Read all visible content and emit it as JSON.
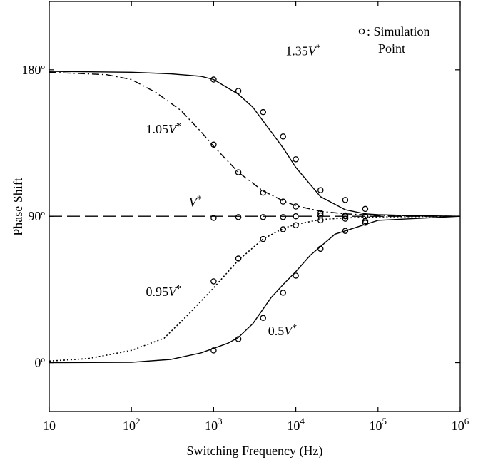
{
  "chart_data": {
    "type": "line",
    "title": "",
    "xlabel": "Switching Frequency (Hz)",
    "ylabel": "Phase Shift",
    "x_scale": "log",
    "xlim": [
      10,
      1000000
    ],
    "ylim": [
      -30,
      222
    ],
    "x_ticks": [
      {
        "value": 10,
        "base": "10",
        "exp": ""
      },
      {
        "value": 100,
        "base": "10",
        "exp": "2"
      },
      {
        "value": 1000,
        "base": "10",
        "exp": "3"
      },
      {
        "value": 10000,
        "base": "10",
        "exp": "4"
      },
      {
        "value": 100000,
        "base": "10",
        "exp": "5"
      },
      {
        "value": 1000000,
        "base": "10",
        "exp": "6"
      }
    ],
    "y_ticks": [
      {
        "value": 0,
        "label": "0º"
      },
      {
        "value": 90,
        "label": "90º"
      },
      {
        "value": 180,
        "label": "180º"
      }
    ],
    "legend": {
      "marker": "o",
      "text_line1": ": Simulation",
      "text_line2": "Point",
      "position": "top-right"
    },
    "series": [
      {
        "name": "1.35V*",
        "label_main": "1.35",
        "label_var": "V",
        "label_sup": "*",
        "label_x": 7500,
        "label_y": 189,
        "style": "solid",
        "curve": {
          "x": [
            10,
            100,
            300,
            700,
            1000,
            2000,
            3000,
            5000,
            7000,
            10000,
            20000,
            40000,
            70000,
            100000,
            300000,
            1000000
          ],
          "y": [
            179,
            178.5,
            177.5,
            176,
            174,
            165,
            157,
            142,
            132,
            120,
            102,
            94,
            91.5,
            91,
            90.3,
            90
          ]
        },
        "points": {
          "x": [
            1000,
            2000,
            4000,
            7000,
            10000,
            20000,
            40000,
            70000
          ],
          "y": [
            174,
            167,
            154,
            139,
            125,
            106,
            100,
            94.5
          ]
        }
      },
      {
        "name": "1.05V*",
        "label_main": "1.05",
        "label_var": "V",
        "label_sup": "*",
        "label_x": 150,
        "label_y": 141,
        "style": "dashdot",
        "curve": {
          "x": [
            10,
            50,
            100,
            200,
            400,
            700,
            1000,
            2000,
            4000,
            7000,
            10000,
            20000,
            40000,
            100000,
            1000000
          ],
          "y": [
            178.5,
            177,
            174,
            166,
            155,
            142,
            133,
            117,
            105.5,
            99.5,
            96.5,
            93,
            91.5,
            90.5,
            90
          ]
        },
        "points": {
          "x": [
            1000,
            2000,
            4000,
            7000,
            10000,
            20000,
            40000,
            70000
          ],
          "y": [
            134,
            117,
            104.5,
            99,
            96,
            92,
            90.5,
            90
          ]
        }
      },
      {
        "name": "V*",
        "label_main": "",
        "label_var": "V",
        "label_sup": "*",
        "label_x": 500,
        "label_y": 96,
        "style": "dashed",
        "curve": {
          "x": [
            10,
            1000000
          ],
          "y": [
            90,
            90
          ]
        },
        "points": {
          "x": [
            1000,
            2000,
            4000,
            7000,
            10000,
            20000,
            40000,
            70000
          ],
          "y": [
            89,
            89.5,
            89.5,
            89.5,
            90,
            90.5,
            90,
            90
          ]
        }
      },
      {
        "name": "0.95V*",
        "label_main": "0.95",
        "label_var": "V",
        "label_sup": "*",
        "label_x": 150,
        "label_y": 41,
        "style": "dotted",
        "curve": {
          "x": [
            10,
            30,
            100,
            250,
            500,
            1000,
            2000,
            4000,
            7000,
            10000,
            20000,
            40000,
            100000,
            1000000
          ],
          "y": [
            1,
            2.5,
            7.5,
            15,
            30,
            46,
            63,
            76,
            82.5,
            85,
            88,
            89,
            89.6,
            90
          ]
        },
        "points": {
          "x": [
            1000,
            2000,
            4000,
            7000,
            10000,
            20000,
            40000,
            70000
          ],
          "y": [
            50,
            64,
            76,
            82,
            84.5,
            87.5,
            88.5,
            87
          ]
        }
      },
      {
        "name": "0.5V*",
        "label_main": "0.5",
        "label_var": "V",
        "label_sup": "*",
        "label_x": 4600,
        "label_y": 17,
        "style": "solid",
        "curve": {
          "x": [
            10,
            100,
            300,
            700,
            1500,
            2000,
            3000,
            5000,
            7000,
            10000,
            15000,
            30000,
            100000,
            1000000
          ],
          "y": [
            0,
            0.2,
            2,
            6,
            12,
            15.5,
            24,
            40,
            48,
            56,
            66,
            79,
            87.5,
            90
          ]
        },
        "points": {
          "x": [
            1000,
            2000,
            4000,
            7000,
            10000,
            20000,
            40000,
            70000
          ],
          "y": [
            7.5,
            14.5,
            27.5,
            43,
            53.5,
            70,
            81,
            86
          ]
        }
      }
    ],
    "colors": {
      "line": "#000000",
      "background": "#ffffff"
    }
  }
}
